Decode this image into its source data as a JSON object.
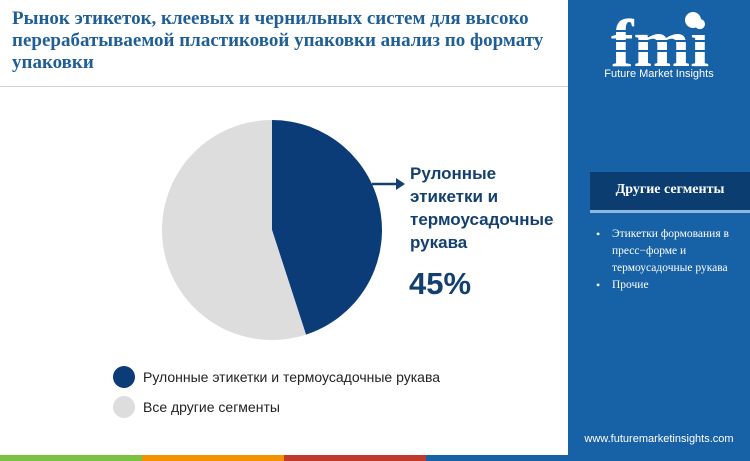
{
  "header": {
    "title": "Рынок этикеток, клеевых и чернильных систем для высоко перерабатываемой пластиковой упаковки анализ по формату упаковки"
  },
  "chart_data": {
    "type": "pie",
    "slices": [
      {
        "label": "Рулонные этикетки и термоусадочные рукава",
        "value": 45,
        "color": "#0b3c78"
      },
      {
        "label": "Все другие сегменты",
        "value": 55,
        "color": "#dddddd"
      }
    ],
    "start_angle_deg": 0,
    "direction": "clockwise",
    "legend_position": "bottom-left"
  },
  "callout": {
    "label": "Рулонные этикетки и термоусадочные рукава",
    "value": "45%"
  },
  "legend": {
    "items": [
      {
        "label": "Рулонные этикетки и термоусадочные рукава",
        "color": "#0b3c78"
      },
      {
        "label": "Все другие сегменты",
        "color": "#dddddd"
      }
    ]
  },
  "sidebar": {
    "logo_text": "fmi",
    "logo_subtitle": "Future Market Insights",
    "segments_title": "Другие сегменты",
    "segments": [
      "Этикетки формования в пресс−форме и термоусадочные рукава",
      "Прочие"
    ],
    "website": "www.futuremarketinsights.com"
  },
  "bottom_bar_colors": [
    "#7cc242",
    "#f39200",
    "#c0392b",
    "#1761a6"
  ]
}
